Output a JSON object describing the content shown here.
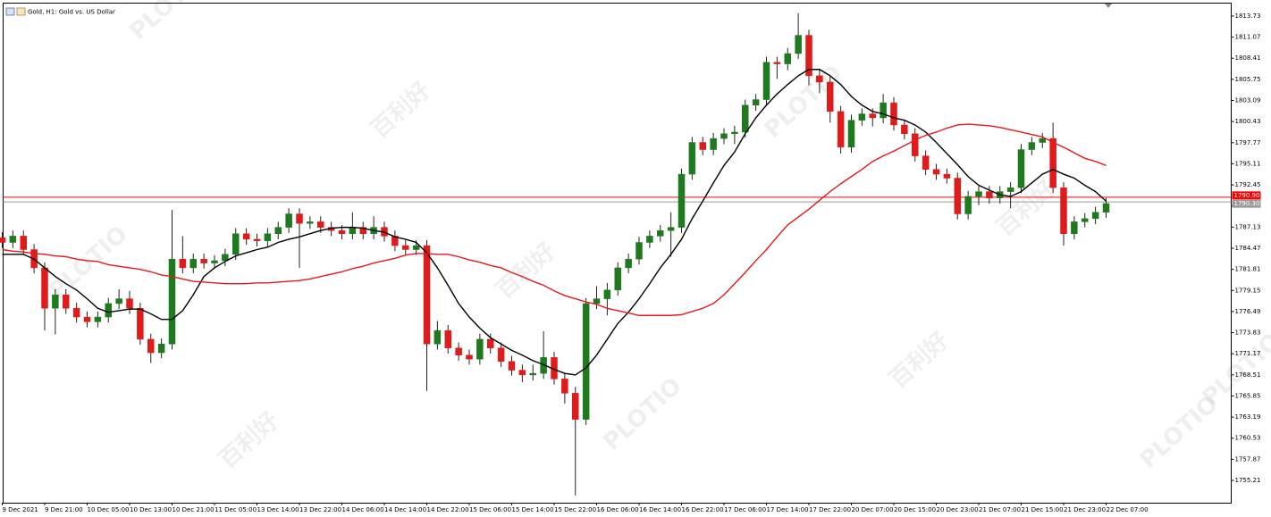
{
  "chart_data": {
    "type": "candlestick",
    "title": "Gold, H1:  Gold vs. US Dollar",
    "watermark": {
      "brand": "PLOTIO",
      "local": "百利好"
    },
    "up_color": "#1f7a1f",
    "down_color": "#e01b1b",
    "categories": [
      "9 Dec 2021",
      null,
      null,
      null,
      "9 Dec 21:00",
      null,
      null,
      null,
      "10 Dec 05:00",
      null,
      null,
      null,
      "10 Dec 13:00",
      null,
      null,
      null,
      "10 Dec 21:00",
      null,
      null,
      null,
      "11 Dec 05:00",
      null,
      null,
      null,
      "13 Dec 14:00",
      null,
      null,
      null,
      "13 Dec 22:00",
      null,
      null,
      null,
      "14 Dec 06:00",
      null,
      null,
      null,
      "14 Dec 14:00",
      null,
      null,
      null,
      "14 Dec 22:00",
      null,
      null,
      null,
      "15 Dec 06:00",
      null,
      null,
      null,
      "15 Dec 14:00",
      null,
      null,
      null,
      "15 Dec 22:00",
      null,
      null,
      null,
      "16 Dec 06:00",
      null,
      null,
      null,
      "16 Dec 14:00",
      null,
      null,
      null,
      "16 Dec 22:00",
      null,
      null,
      null,
      "17 Dec 06:00",
      null,
      null,
      null,
      "17 Dec 14:00",
      null,
      null,
      null,
      "17 Dec 22:00",
      null,
      null,
      null,
      "20 Dec 07:00",
      null,
      null,
      null,
      "20 Dec 15:00",
      null,
      null,
      null,
      "20 Dec 23:00",
      null,
      null,
      null,
      "21 Dec 07:00",
      null,
      null,
      null,
      "21 Dec 15:00",
      null,
      null,
      null,
      "21 Dec 23:00",
      null,
      null,
      null,
      "22 Dec 07:00"
    ],
    "open": [
      1785.8,
      1785.2,
      1786.0,
      1784.3,
      1782.0,
      1776.9,
      1778.6,
      1776.9,
      1775.8,
      1775.2,
      1775.8,
      1777.5,
      1778.1,
      1776.9,
      1773.0,
      1771.3,
      1772.4,
      1783.1,
      1782.0,
      1783.1,
      1782.6,
      1782.9,
      1783.7,
      1786.3,
      1785.6,
      1785.4,
      1786.3,
      1787.1,
      1788.8,
      1787.6,
      1787.8,
      1787.1,
      1786.7,
      1786.3,
      1787.1,
      1786.3,
      1787.1,
      1786.0,
      1784.8,
      1784.3,
      1784.8,
      1772.4,
      1774.1,
      1771.9,
      1771.0,
      1770.5,
      1773.0,
      1771.9,
      1770.2,
      1769.1,
      1768.5,
      1768.7,
      1770.7,
      1768.0,
      1766.2,
      1762.9,
      1777.5,
      1778.1,
      1779.2,
      1782.0,
      1783.1,
      1785.2,
      1786.0,
      1786.7,
      1787.1,
      1793.8,
      1797.8,
      1796.9,
      1798.3,
      1798.9,
      1799.1,
      1802.5,
      1803.2,
      1807.9,
      1807.7,
      1809.0,
      1811.3,
      1806.2,
      1805.4,
      1801.7,
      1797.2,
      1800.6,
      1801.4,
      1800.9,
      1802.8,
      1800.0,
      1798.9,
      1796.1,
      1794.4,
      1793.8,
      1793.3,
      1788.8,
      1791.0,
      1791.6,
      1790.8,
      1791.6,
      1792.1,
      1796.9,
      1797.8,
      1798.3,
      1792.1,
      1786.3,
      1787.8,
      1788.2,
      1789.0
    ],
    "high": [
      1786.5,
      1786.7,
      1786.7,
      1785.0,
      1782.7,
      1779.3,
      1779.3,
      1777.6,
      1776.5,
      1776.5,
      1778.2,
      1779.3,
      1779.1,
      1777.6,
      1773.7,
      1773.1,
      1789.3,
      1786.0,
      1783.8,
      1783.8,
      1783.6,
      1784.4,
      1787.0,
      1787.0,
      1786.3,
      1787.0,
      1787.8,
      1789.5,
      1789.5,
      1788.5,
      1788.5,
      1787.8,
      1787.4,
      1789.0,
      1787.8,
      1788.5,
      1787.8,
      1786.7,
      1785.5,
      1785.5,
      1785.5,
      1775.3,
      1774.8,
      1772.6,
      1771.7,
      1773.7,
      1773.7,
      1772.6,
      1770.9,
      1769.8,
      1769.8,
      1774.0,
      1771.4,
      1768.7,
      1767.0,
      1778.2,
      1779.7,
      1780.1,
      1782.7,
      1783.8,
      1785.9,
      1786.7,
      1787.4,
      1789.0,
      1794.5,
      1798.5,
      1798.5,
      1799.0,
      1799.6,
      1799.9,
      1803.2,
      1803.9,
      1808.6,
      1808.6,
      1809.7,
      1814.1,
      1812.0,
      1806.9,
      1806.1,
      1802.4,
      1801.3,
      1802.1,
      1802.1,
      1803.9,
      1803.5,
      1800.7,
      1799.6,
      1796.8,
      1795.1,
      1794.5,
      1794.0,
      1791.7,
      1792.3,
      1792.3,
      1792.3,
      1792.8,
      1797.6,
      1798.5,
      1799.0,
      1800.3,
      1792.8,
      1788.5,
      1788.9,
      1789.7,
      1790.8
    ],
    "low": [
      1784.5,
      1784.5,
      1783.6,
      1781.3,
      1774.1,
      1773.6,
      1776.2,
      1775.1,
      1774.5,
      1774.5,
      1775.1,
      1776.8,
      1776.2,
      1772.3,
      1770.0,
      1770.6,
      1771.7,
      1781.3,
      1781.3,
      1781.9,
      1781.9,
      1782.2,
      1783.0,
      1784.9,
      1784.7,
      1784.7,
      1785.6,
      1786.4,
      1782.0,
      1786.9,
      1786.4,
      1786.0,
      1785.6,
      1785.6,
      1785.6,
      1785.6,
      1785.3,
      1784.1,
      1783.6,
      1783.6,
      1766.5,
      1771.7,
      1771.2,
      1770.3,
      1769.8,
      1769.8,
      1771.2,
      1769.5,
      1768.4,
      1767.6,
      1767.8,
      1768.0,
      1767.3,
      1764.9,
      1753.3,
      1762.2,
      1776.8,
      1776.0,
      1778.5,
      1781.3,
      1782.4,
      1784.5,
      1785.3,
      1783.4,
      1786.4,
      1793.1,
      1796.2,
      1796.2,
      1797.6,
      1797.6,
      1798.4,
      1801.8,
      1802.5,
      1805.8,
      1806.9,
      1808.3,
      1805.0,
      1804.0,
      1800.3,
      1796.4,
      1796.5,
      1799.9,
      1799.8,
      1800.2,
      1799.3,
      1798.2,
      1795.4,
      1793.7,
      1793.1,
      1792.6,
      1788.1,
      1788.1,
      1789.9,
      1790.1,
      1790.1,
      1789.5,
      1791.4,
      1796.2,
      1797.1,
      1791.4,
      1784.8,
      1785.6,
      1787.1,
      1787.5,
      1788.3
    ],
    "close": [
      1785.2,
      1786.0,
      1784.3,
      1782.0,
      1776.9,
      1778.6,
      1776.9,
      1775.8,
      1775.2,
      1775.8,
      1777.5,
      1778.1,
      1776.9,
      1773.0,
      1771.3,
      1772.4,
      1783.1,
      1782.0,
      1783.1,
      1782.6,
      1782.9,
      1783.7,
      1786.3,
      1785.6,
      1785.4,
      1786.3,
      1787.1,
      1788.8,
      1787.6,
      1787.8,
      1787.1,
      1786.7,
      1786.3,
      1787.1,
      1786.3,
      1787.1,
      1786.0,
      1784.8,
      1784.3,
      1784.8,
      1772.4,
      1774.1,
      1771.9,
      1771.0,
      1770.5,
      1773.0,
      1771.9,
      1770.2,
      1769.1,
      1768.5,
      1768.7,
      1770.7,
      1768.0,
      1766.2,
      1762.9,
      1777.5,
      1778.1,
      1779.2,
      1782.0,
      1783.1,
      1785.2,
      1786.0,
      1786.7,
      1787.1,
      1793.8,
      1797.8,
      1796.9,
      1798.3,
      1798.9,
      1799.1,
      1802.5,
      1803.2,
      1807.9,
      1807.7,
      1809.0,
      1811.3,
      1806.2,
      1805.4,
      1801.7,
      1797.2,
      1800.6,
      1801.4,
      1800.9,
      1802.8,
      1800.0,
      1798.9,
      1796.1,
      1794.4,
      1793.8,
      1793.3,
      1788.8,
      1791.0,
      1791.6,
      1790.8,
      1791.6,
      1792.1,
      1796.9,
      1797.8,
      1798.3,
      1792.1,
      1786.3,
      1787.8,
      1788.2,
      1789.0,
      1790.1
    ],
    "lines": [
      {
        "color": "#000000",
        "values": [
          1783.7,
          1783.7,
          1783.7,
          1783.1,
          1782.0,
          1780.9,
          1780.0,
          1779.2,
          1778.1,
          1776.9,
          1776.4,
          1776.6,
          1776.8,
          1776.8,
          1776.2,
          1775.5,
          1775.5,
          1776.6,
          1778.6,
          1780.9,
          1782.0,
          1782.8,
          1783.5,
          1783.9,
          1784.3,
          1784.6,
          1785.2,
          1785.6,
          1785.9,
          1786.3,
          1786.7,
          1787.0,
          1787.1,
          1787.1,
          1787.0,
          1786.7,
          1786.5,
          1785.9,
          1785.6,
          1785.2,
          1783.9,
          1782.0,
          1779.8,
          1777.5,
          1775.8,
          1774.4,
          1773.2,
          1772.4,
          1771.6,
          1771.0,
          1770.3,
          1769.8,
          1769.2,
          1768.7,
          1768.5,
          1769.4,
          1771.0,
          1773.0,
          1775.0,
          1776.4,
          1778.1,
          1780.0,
          1782.0,
          1783.7,
          1785.6,
          1788.2,
          1790.4,
          1792.7,
          1794.9,
          1796.6,
          1798.9,
          1800.9,
          1802.5,
          1803.9,
          1805.1,
          1806.2,
          1807.0,
          1807.0,
          1806.2,
          1805.1,
          1803.6,
          1802.5,
          1801.7,
          1801.4,
          1800.9,
          1800.6,
          1800.0,
          1799.1,
          1797.8,
          1796.4,
          1795.0,
          1793.5,
          1792.4,
          1791.8,
          1791.2,
          1791.0,
          1791.6,
          1792.7,
          1793.8,
          1794.4,
          1793.8,
          1793.3,
          1792.4,
          1791.6,
          1790.4
        ]
      },
      {
        "color": "#e8191c",
        "values": [
          1784.3,
          1784.1,
          1784.0,
          1783.8,
          1783.7,
          1783.5,
          1783.4,
          1783.1,
          1782.9,
          1782.8,
          1782.4,
          1782.2,
          1782.0,
          1781.8,
          1781.5,
          1781.1,
          1780.9,
          1780.6,
          1780.3,
          1780.2,
          1780.1,
          1780.0,
          1780.0,
          1780.0,
          1780.1,
          1780.1,
          1780.2,
          1780.3,
          1780.4,
          1780.6,
          1780.9,
          1781.2,
          1781.5,
          1781.9,
          1782.2,
          1782.6,
          1782.9,
          1783.2,
          1783.6,
          1783.8,
          1783.8,
          1783.7,
          1783.7,
          1783.4,
          1783.0,
          1782.7,
          1782.3,
          1782.0,
          1781.4,
          1780.9,
          1780.3,
          1779.8,
          1779.1,
          1778.5,
          1778.1,
          1777.7,
          1777.4,
          1776.9,
          1776.6,
          1776.3,
          1776.0,
          1776.0,
          1776.0,
          1776.0,
          1776.1,
          1776.5,
          1776.9,
          1777.5,
          1778.6,
          1780.0,
          1781.4,
          1782.9,
          1784.3,
          1785.9,
          1787.4,
          1788.4,
          1789.4,
          1790.5,
          1791.6,
          1792.6,
          1793.5,
          1794.4,
          1795.4,
          1796.1,
          1796.7,
          1797.4,
          1798.1,
          1798.7,
          1799.1,
          1799.6,
          1800.0,
          1800.1,
          1800.0,
          1799.9,
          1799.7,
          1799.4,
          1799.1,
          1798.8,
          1798.5,
          1797.8,
          1797.2,
          1796.5,
          1795.8,
          1795.4,
          1794.9
        ]
      }
    ],
    "price_lines": [
      {
        "value": 1790.9,
        "label": "1790.90",
        "color": "#ff0000"
      },
      {
        "value": 1790.3,
        "label": "1790.30",
        "color": "#9a9a9a"
      }
    ],
    "ylim": [
      1752.4,
      1815.3
    ],
    "yticks": [
      1813.73,
      1811.07,
      1808.41,
      1805.75,
      1803.09,
      1800.43,
      1797.77,
      1795.11,
      1792.45,
      1789.79,
      1787.13,
      1784.47,
      1781.81,
      1779.15,
      1776.49,
      1773.83,
      1771.17,
      1768.51,
      1765.85,
      1763.19,
      1760.53,
      1757.87,
      1755.21
    ]
  }
}
